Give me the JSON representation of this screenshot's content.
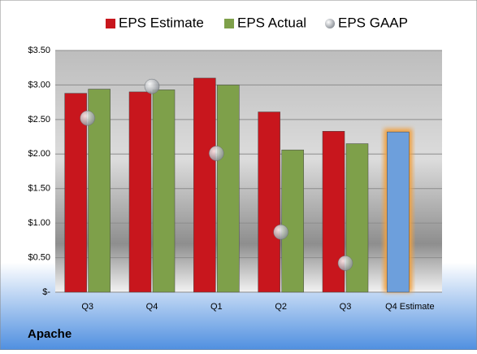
{
  "chart_data": {
    "type": "bar",
    "categories": [
      "Q3",
      "Q4",
      "Q1",
      "Q2",
      "Q3",
      "Q4 Estimate"
    ],
    "series": [
      {
        "name": "EPS Estimate",
        "color": "#c8161d",
        "colors": [
          "#c8161d",
          "#c8161d",
          "#c8161d",
          "#c8161d",
          "#c8161d",
          "#6d9fdc"
        ],
        "values": [
          2.88,
          2.9,
          3.1,
          2.61,
          2.33,
          2.32
        ]
      },
      {
        "name": "EPS Actual",
        "color": "#7ea04a",
        "values": [
          2.94,
          2.93,
          3.0,
          2.06,
          2.15,
          null
        ]
      },
      {
        "name": "EPS GAAP",
        "color": "#a8adb5",
        "marker": "circle",
        "values": [
          2.52,
          2.98,
          2.01,
          0.87,
          0.42,
          null
        ]
      }
    ],
    "ylim": [
      0,
      3.5
    ],
    "yticks": [
      {
        "value": 0,
        "label": "$-"
      },
      {
        "value": 0.5,
        "label": "$0.50"
      },
      {
        "value": 1,
        "label": "$1.00"
      },
      {
        "value": 1.5,
        "label": "$1.50"
      },
      {
        "value": 2,
        "label": "$2.00"
      },
      {
        "value": 2.5,
        "label": "$2.50"
      },
      {
        "value": 3,
        "label": "$3.00"
      },
      {
        "value": 3.5,
        "label": "$3.50"
      }
    ],
    "grid": true,
    "legend": "top",
    "footer": "Apache"
  }
}
